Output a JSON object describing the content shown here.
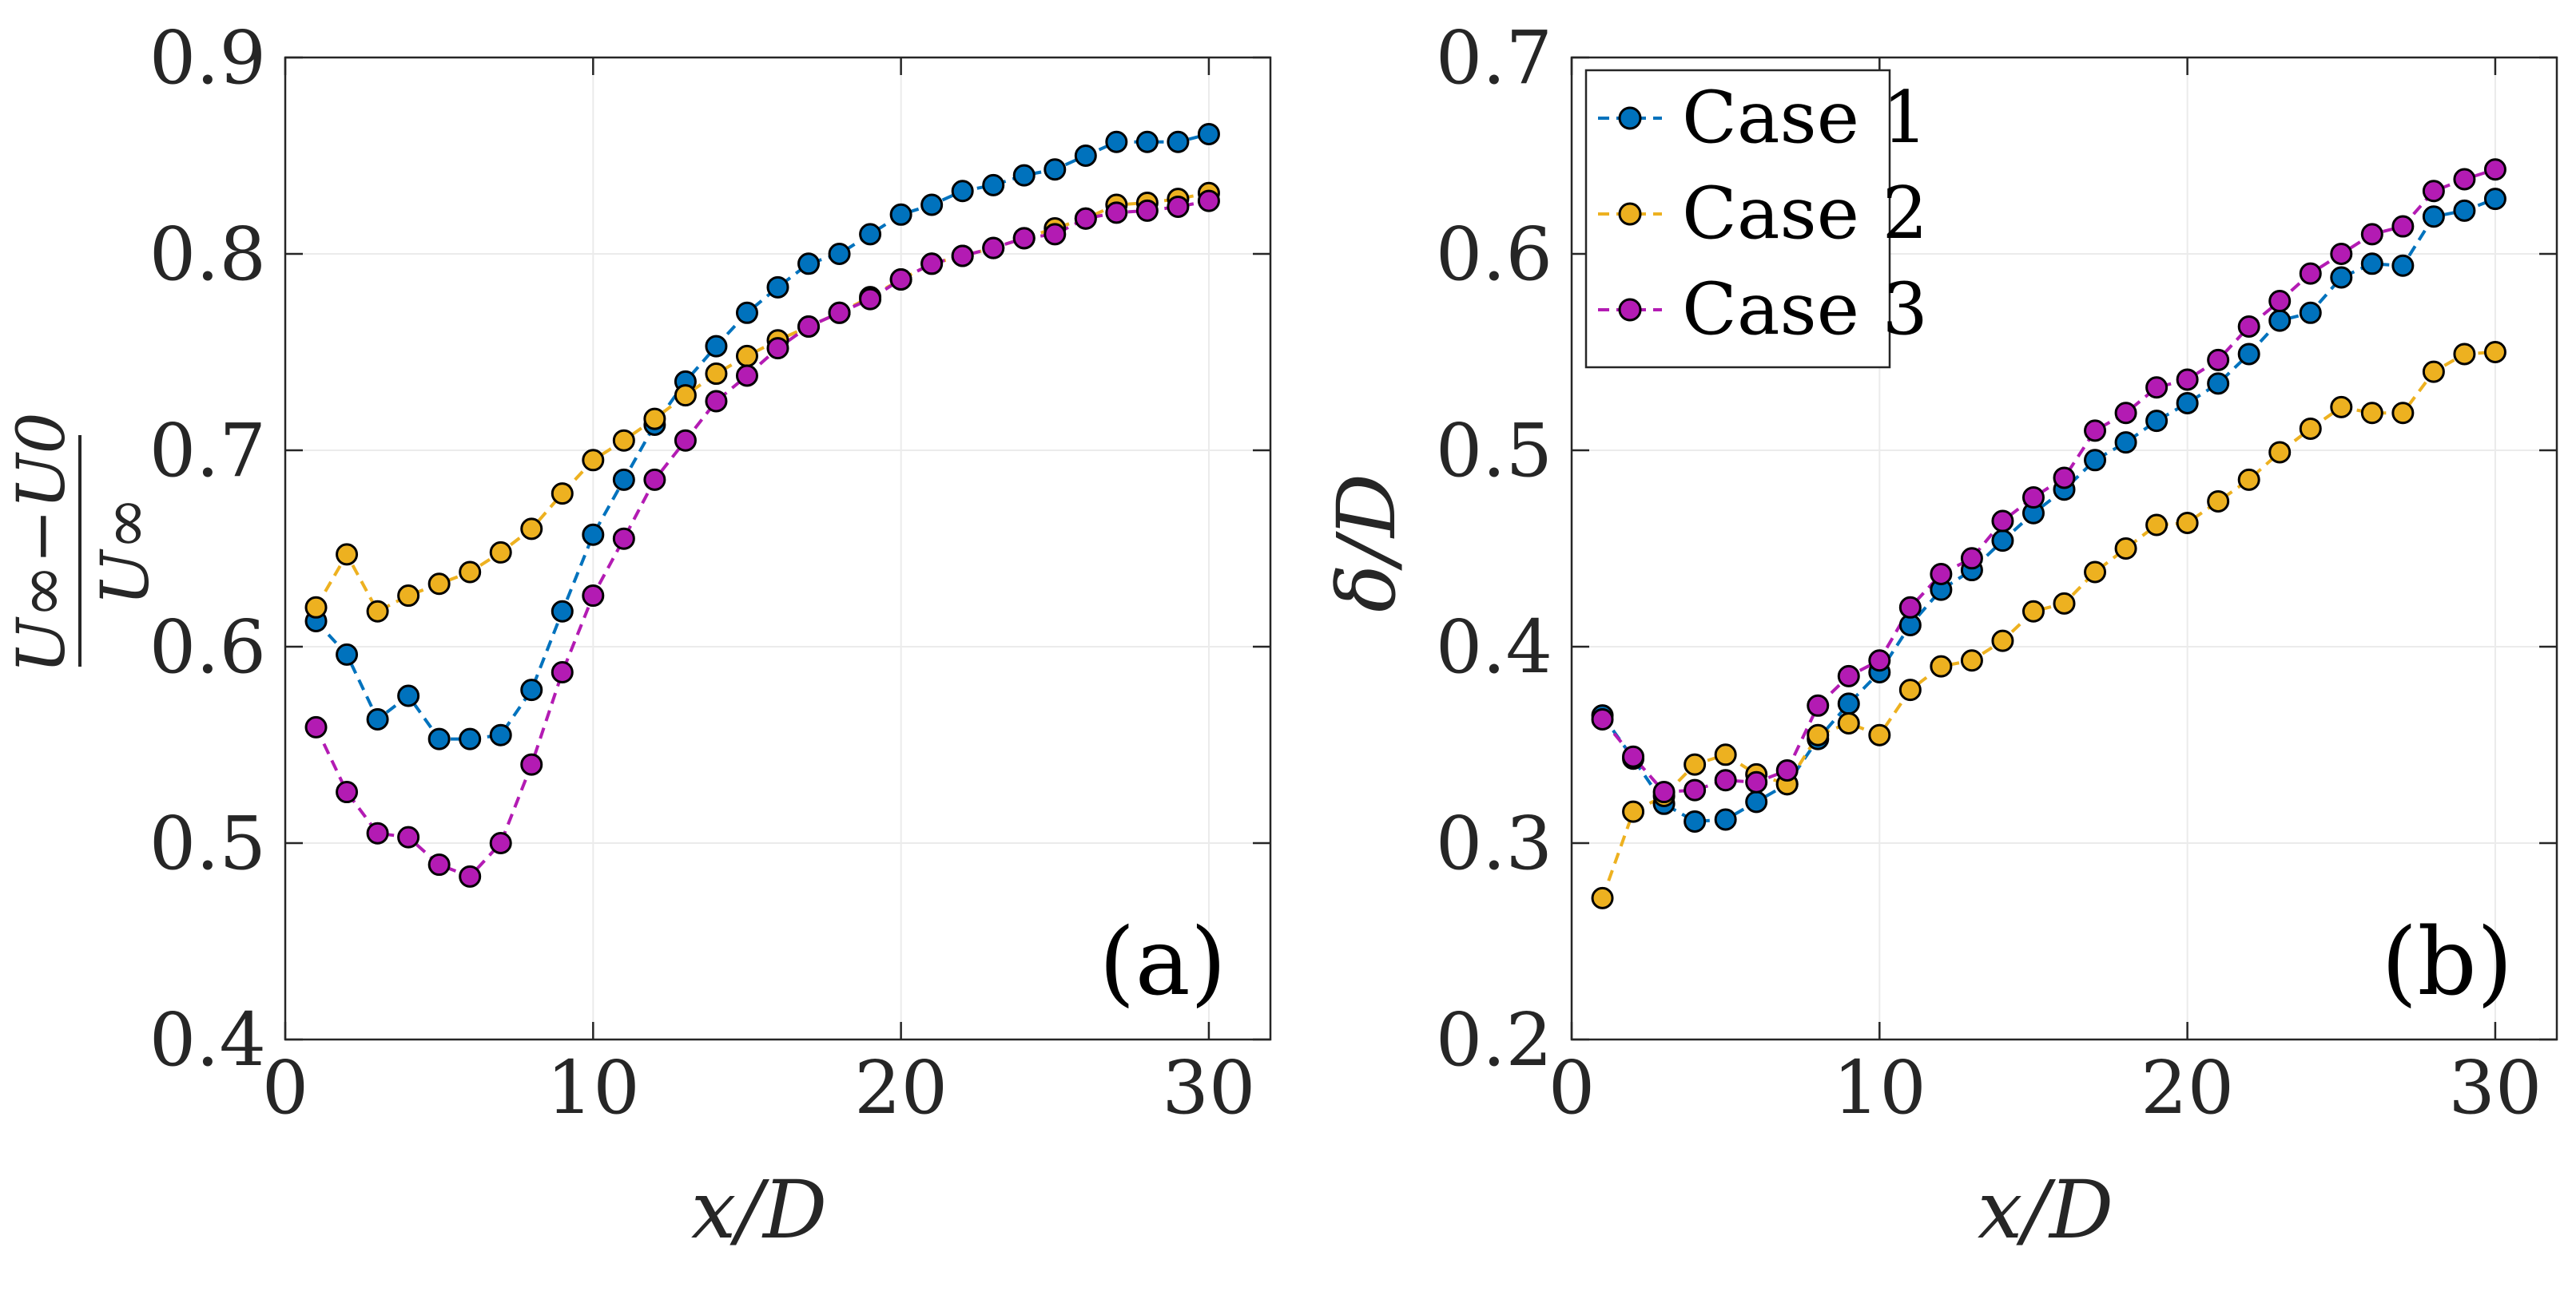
{
  "colors": {
    "case1": "#0072BD",
    "case2": "#EDB120",
    "case3": "#B31BB3",
    "axis": "#262626",
    "grid": "#ebebeb"
  },
  "chart_data": [
    {
      "type": "line",
      "panel_label": "(a)",
      "xlabel": "x/D",
      "ylabel": "(U∞−U0)/U∞",
      "ylabel_num": "U∞−U0",
      "ylabel_den": "U∞",
      "xlim": [
        0,
        32
      ],
      "ylim": [
        0.4,
        0.9
      ],
      "xticks": [
        "0",
        "10",
        "20",
        "30"
      ],
      "yticks": [
        "0.4",
        "0.5",
        "0.6",
        "0.7",
        "0.8",
        "0.9"
      ],
      "grid": true,
      "x": [
        1,
        2,
        3,
        4,
        5,
        6,
        7,
        8,
        9,
        10,
        11,
        12,
        13,
        14,
        15,
        16,
        17,
        18,
        19,
        20,
        21,
        22,
        23,
        24,
        25,
        26,
        27,
        28,
        29,
        30
      ],
      "series": [
        {
          "name": "Case 1",
          "values": [
            0.613,
            0.596,
            0.563,
            0.575,
            0.553,
            0.553,
            0.555,
            0.578,
            0.618,
            0.657,
            0.685,
            0.713,
            0.735,
            0.753,
            0.77,
            0.783,
            0.795,
            0.8,
            0.81,
            0.82,
            0.825,
            0.832,
            0.835,
            0.84,
            0.843,
            0.85,
            0.857,
            0.857,
            0.857,
            0.861
          ]
        },
        {
          "name": "Case 2",
          "values": [
            0.62,
            0.647,
            0.618,
            0.626,
            0.632,
            0.638,
            0.648,
            0.66,
            0.678,
            0.695,
            0.705,
            0.716,
            0.728,
            0.739,
            0.748,
            0.756,
            0.763,
            0.77,
            0.778,
            0.787,
            0.795,
            0.799,
            0.803,
            0.808,
            0.813,
            0.818,
            0.825,
            0.826,
            0.828,
            0.831
          ]
        },
        {
          "name": "Case 3",
          "values": [
            0.559,
            0.526,
            0.505,
            0.503,
            0.489,
            0.483,
            0.5,
            0.54,
            0.587,
            0.626,
            0.655,
            0.685,
            0.705,
            0.725,
            0.738,
            0.752,
            0.763,
            0.77,
            0.777,
            0.787,
            0.795,
            0.799,
            0.803,
            0.808,
            0.81,
            0.818,
            0.821,
            0.822,
            0.824,
            0.827
          ]
        }
      ]
    },
    {
      "type": "line",
      "panel_label": "(b)",
      "xlabel": "x/D",
      "ylabel": "δ/D",
      "xlim": [
        0,
        32
      ],
      "ylim": [
        0.2,
        0.7
      ],
      "xticks": [
        "0",
        "10",
        "20",
        "30"
      ],
      "yticks": [
        "0.2",
        "0.3",
        "0.4",
        "0.5",
        "0.6",
        "0.7"
      ],
      "grid": true,
      "legend_location": "top-left",
      "x": [
        1,
        2,
        3,
        4,
        5,
        6,
        7,
        8,
        9,
        10,
        11,
        12,
        13,
        14,
        15,
        16,
        17,
        18,
        19,
        20,
        21,
        22,
        23,
        24,
        25,
        26,
        27,
        28,
        29,
        30
      ],
      "series": [
        {
          "name": "Case 1",
          "values": [
            0.365,
            0.343,
            0.32,
            0.311,
            0.312,
            0.321,
            0.33,
            0.353,
            0.371,
            0.387,
            0.411,
            0.429,
            0.439,
            0.454,
            0.468,
            0.48,
            0.495,
            0.504,
            0.515,
            0.524,
            0.534,
            0.549,
            0.566,
            0.57,
            0.588,
            0.595,
            0.594,
            0.619,
            0.622,
            0.628
          ]
        },
        {
          "name": "Case 2",
          "values": [
            0.272,
            0.316,
            0.324,
            0.34,
            0.345,
            0.335,
            0.33,
            0.355,
            0.361,
            0.355,
            0.378,
            0.39,
            0.393,
            0.403,
            0.418,
            0.422,
            0.438,
            0.45,
            0.462,
            0.463,
            0.474,
            0.485,
            0.499,
            0.511,
            0.522,
            0.519,
            0.519,
            0.54,
            0.549,
            0.55
          ]
        },
        {
          "name": "Case 3",
          "values": [
            0.363,
            0.344,
            0.326,
            0.327,
            0.332,
            0.331,
            0.337,
            0.37,
            0.385,
            0.393,
            0.42,
            0.437,
            0.445,
            0.464,
            0.476,
            0.486,
            0.51,
            0.519,
            0.532,
            0.536,
            0.546,
            0.563,
            0.576,
            0.59,
            0.6,
            0.61,
            0.614,
            0.632,
            0.638,
            0.643
          ]
        }
      ]
    }
  ]
}
